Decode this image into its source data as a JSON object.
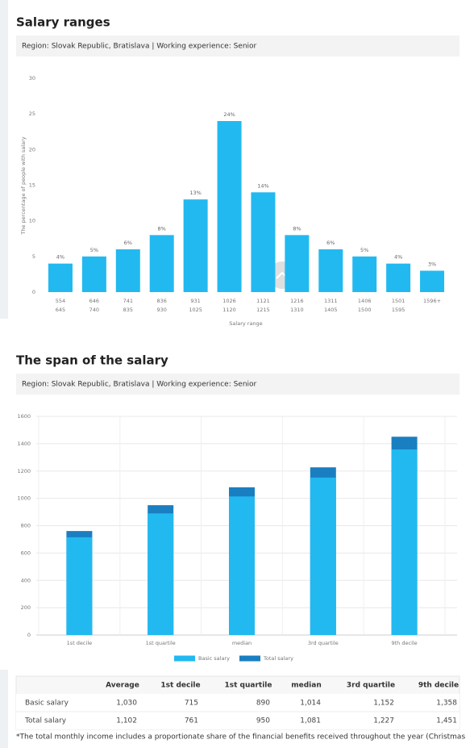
{
  "chart_data": [
    {
      "type": "bar",
      "title": "Salary ranges",
      "subtitle": "Region: Slovak Republic, Bratislava | Working experience: Senior",
      "ylabel": "The percentage of people with salary",
      "xlabel": "Salary range",
      "categories": [
        [
          "554",
          "645"
        ],
        [
          "646",
          "740"
        ],
        [
          "741",
          "835"
        ],
        [
          "836",
          "930"
        ],
        [
          "931",
          "1025"
        ],
        [
          "1026",
          "1120"
        ],
        [
          "1121",
          "1215"
        ],
        [
          "1216",
          "1310"
        ],
        [
          "1311",
          "1405"
        ],
        [
          "1406",
          "1500"
        ],
        [
          "1501",
          "1595"
        ],
        [
          "1596+"
        ]
      ],
      "values": [
        4,
        5,
        6,
        8,
        13,
        24,
        14,
        8,
        6,
        5,
        4,
        3
      ],
      "value_labels": [
        "4%",
        "5%",
        "6%",
        "8%",
        "13%",
        "24%",
        "14%",
        "8%",
        "6%",
        "5%",
        "4%",
        "3%"
      ],
      "color": "#22b9f0",
      "ylim": [
        0,
        30
      ],
      "yticks": [
        0,
        5,
        10,
        15,
        20,
        25,
        30
      ],
      "grid": false
    },
    {
      "type": "overlay_bar",
      "title": "The span of the salary",
      "subtitle": "Region: Slovak Republic, Bratislava | Working experience: Senior",
      "categories": [
        "1st decile",
        "1st quartile",
        "median",
        "3rd quartile",
        "9th decile"
      ],
      "series": [
        {
          "name": "Basic salary",
          "color": "#22b9f0",
          "values": [
            715,
            890,
            1014,
            1152,
            1358
          ]
        },
        {
          "name": "Total salary",
          "color": "#1a7fc1",
          "values": [
            761,
            950,
            1081,
            1227,
            1451
          ]
        }
      ],
      "ylim": [
        0,
        1600
      ],
      "yticks": [
        0,
        200,
        400,
        600,
        800,
        1000,
        1200,
        1400,
        1600
      ],
      "grid": true
    }
  ],
  "table": {
    "columns": [
      "Average",
      "1st decile",
      "1st quartile",
      "median",
      "3rd quartile",
      "9th decile"
    ],
    "rows": [
      {
        "label": "Basic salary",
        "cells": [
          "1,030",
          "715",
          "890",
          "1,014",
          "1,152",
          "1,358"
        ]
      },
      {
        "label": "Total salary",
        "cells": [
          "1,102",
          "761",
          "950",
          "1,081",
          "1,227",
          "1,451"
        ]
      }
    ]
  },
  "footnote": "*The total monthly income includes a proportionate share of the financial benefits received throughout the year (Christmas"
}
